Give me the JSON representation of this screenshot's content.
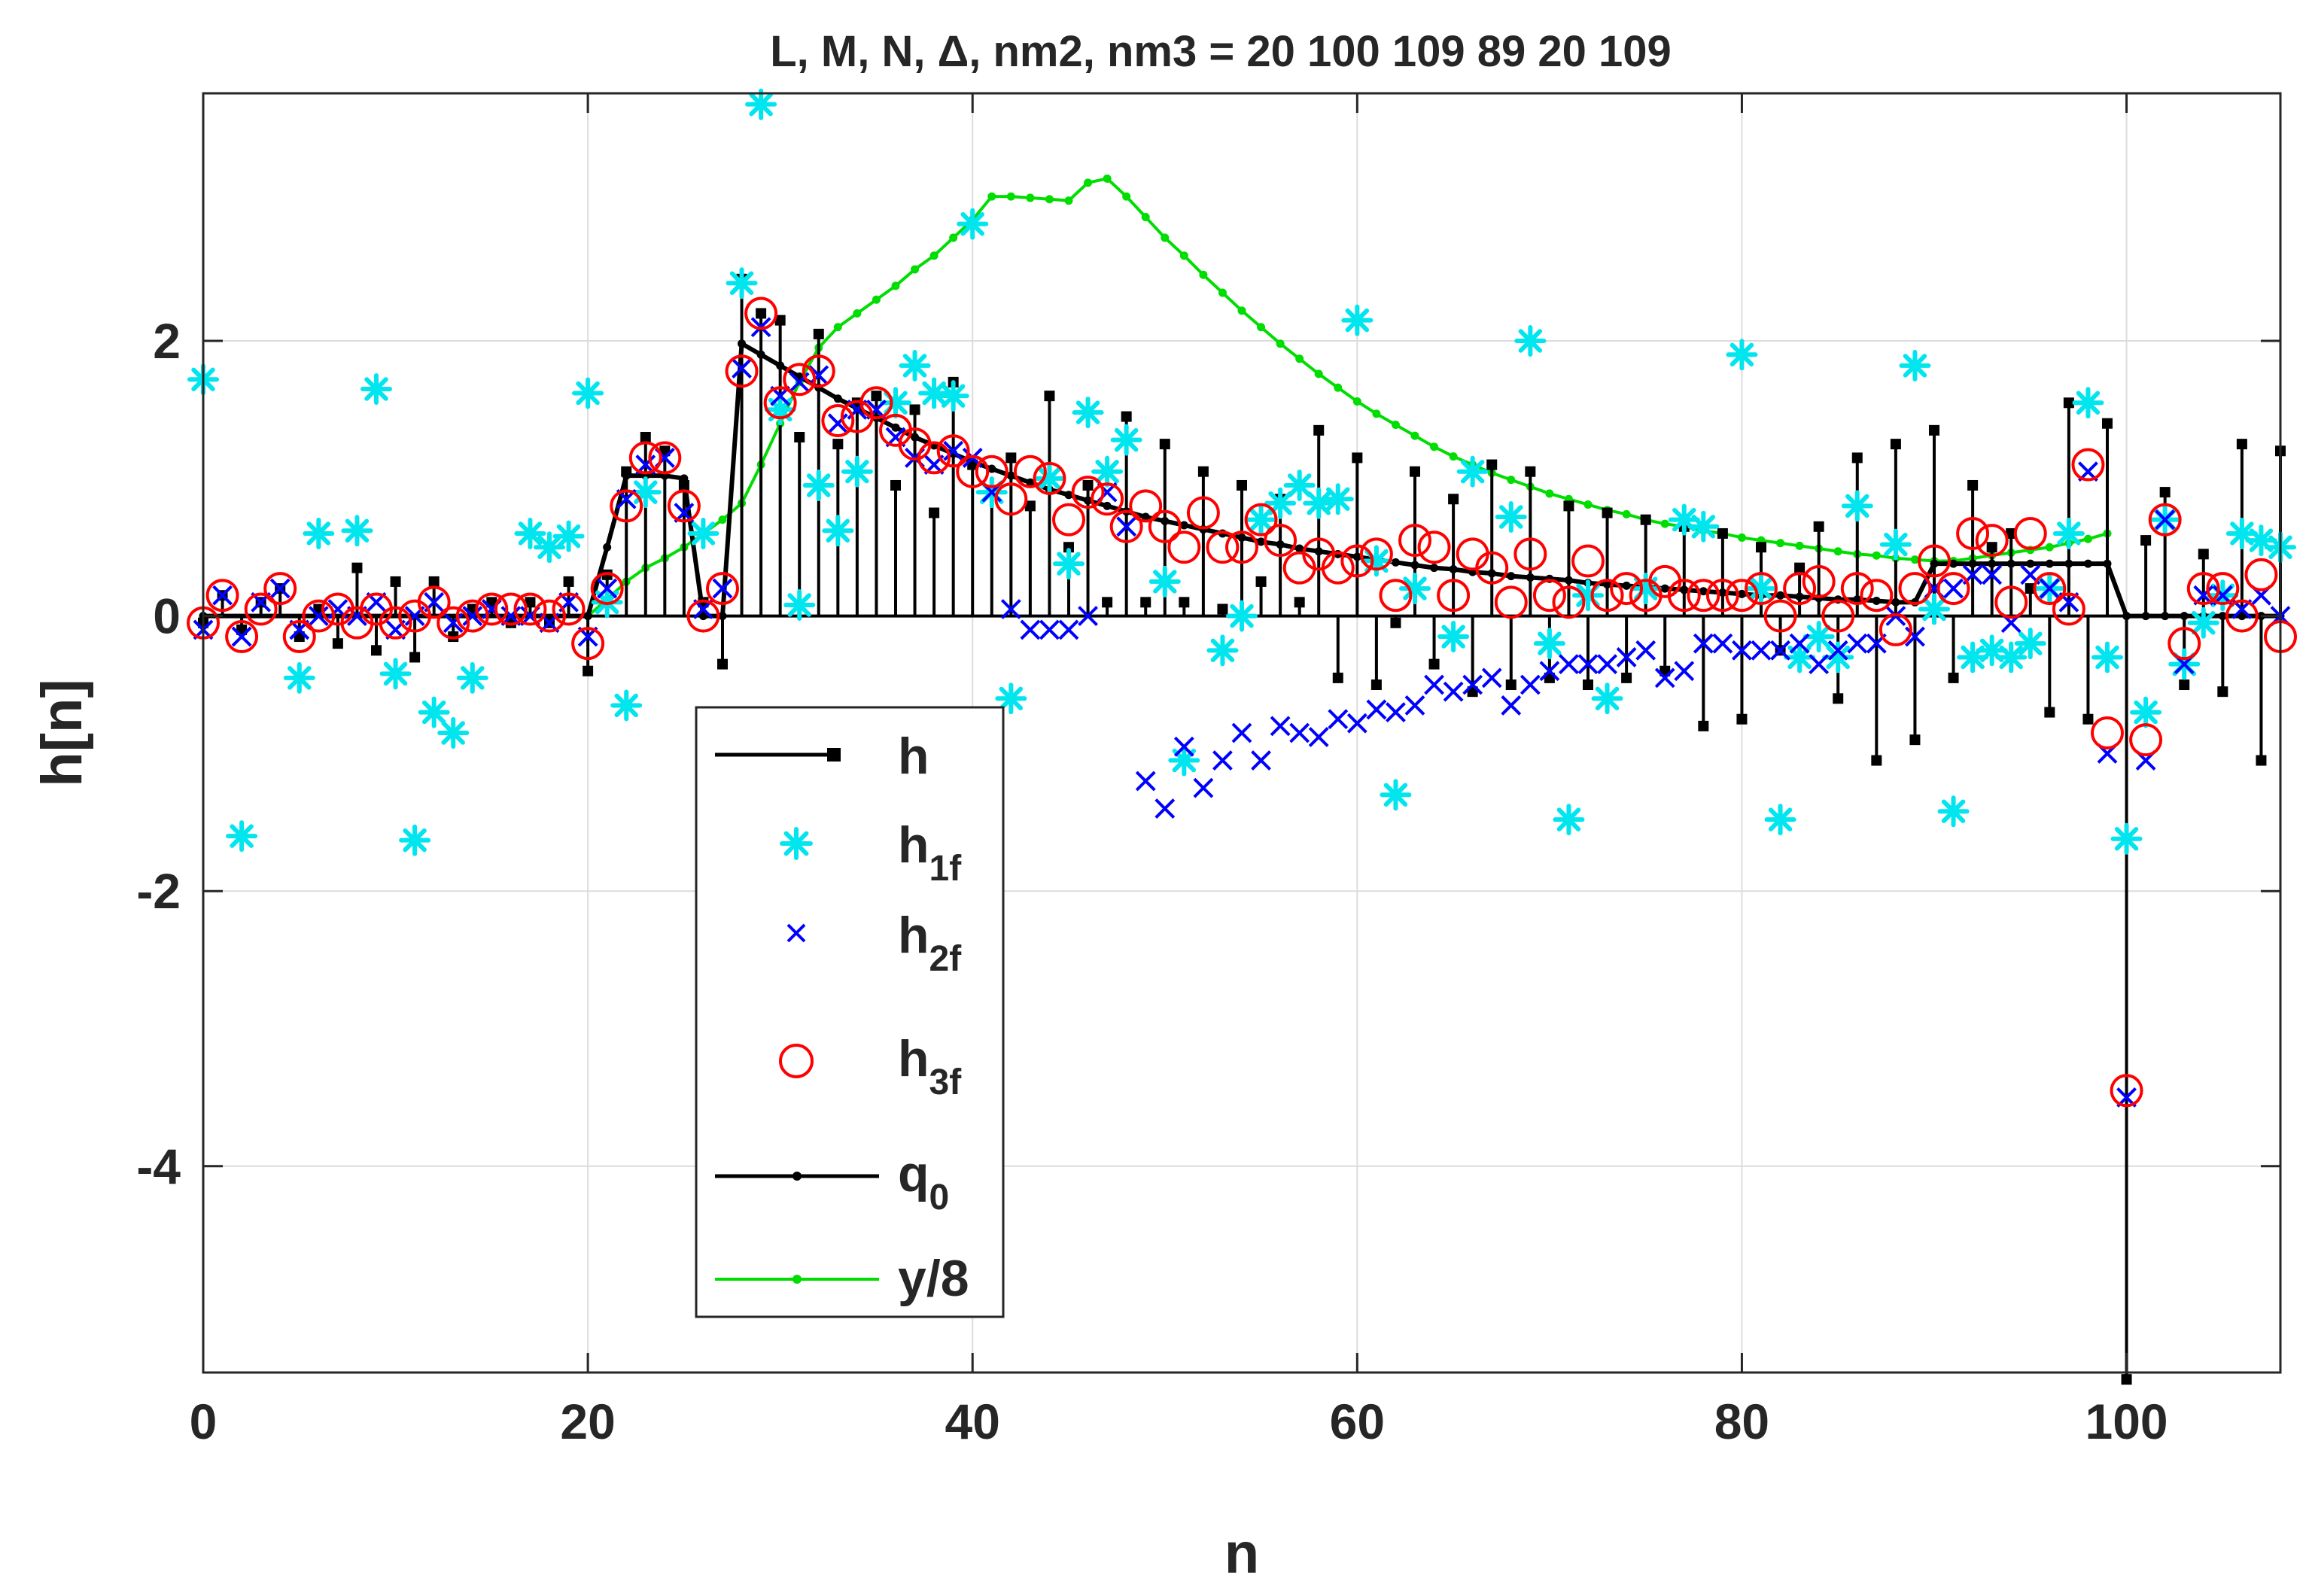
{
  "chart_data": {
    "type": "scatter",
    "title": "L, M, N, Δ, nm2, nm3 = 20  100  109   89   20  109",
    "xlabel": "n",
    "ylabel": "h[n]",
    "xlim": [
      0,
      108
    ],
    "ylim": [
      -5.5,
      3.8
    ],
    "xticks": [
      0,
      20,
      40,
      60,
      80,
      100
    ],
    "yticks": [
      2,
      0,
      -2,
      -4
    ],
    "xtick_labels": [
      "0",
      "20",
      "40",
      "60",
      "80",
      "100"
    ],
    "ytick_labels": [
      "2",
      "0",
      "-2",
      "-4"
    ],
    "grid": true,
    "legend_position": "bottom-center",
    "legend": {
      "h": "h",
      "h1f": "h",
      "h1f_sub": "1f",
      "h2f": "h",
      "h2f_sub": "2f",
      "h3f": "h",
      "h3f_sub": "3f",
      "q0": "q",
      "q0_sub": "0",
      "y8": "y/8"
    },
    "colors": {
      "h": "#000000",
      "h1f": "#00e5ee",
      "h2f": "#0000ff",
      "h3f": "#ff0000",
      "q0": "#000000",
      "y8": "#00dd00"
    },
    "series": [
      {
        "name": "h",
        "style": "stem",
        "x": [
          0,
          1,
          2,
          3,
          4,
          5,
          6,
          7,
          8,
          9,
          10,
          11,
          12,
          13,
          14,
          15,
          16,
          17,
          18,
          19,
          20,
          21,
          22,
          23,
          24,
          25,
          26,
          27,
          28,
          29,
          30,
          31,
          32,
          33,
          34,
          35,
          36,
          37,
          38,
          39,
          40,
          41,
          42,
          43,
          44,
          45,
          46,
          47,
          48,
          49,
          50,
          51,
          52,
          53,
          54,
          55,
          56,
          57,
          58,
          59,
          60,
          61,
          62,
          63,
          64,
          65,
          66,
          67,
          68,
          69,
          70,
          71,
          72,
          73,
          74,
          75,
          76,
          77,
          78,
          79,
          80,
          81,
          82,
          83,
          84,
          85,
          86,
          87,
          88,
          89,
          90,
          91,
          92,
          93,
          94,
          95,
          96,
          97,
          98,
          99,
          100,
          101,
          102,
          103,
          104,
          105,
          106,
          107,
          108
        ],
        "values": [
          -0.05,
          0.15,
          -0.1,
          0.1,
          0.2,
          -0.15,
          0.05,
          -0.2,
          0.35,
          -0.25,
          0.25,
          -0.3,
          0.25,
          -0.15,
          0.05,
          0.1,
          -0.05,
          0.1,
          -0.05,
          0.25,
          -0.4,
          0.3,
          1.05,
          1.3,
          1.2,
          0.95,
          0.1,
          -0.35,
          2.45,
          2.2,
          2.15,
          1.3,
          2.05,
          1.25,
          1.55,
          1.6,
          0.95,
          1.5,
          0.75,
          1.7,
          1.1,
          0.9,
          1.15,
          0.8,
          1.6,
          0.5,
          0.95,
          0.1,
          1.45,
          0.1,
          1.25,
          0.1,
          1.05,
          0.05,
          0.95,
          0.25,
          0.85,
          0.1,
          1.35,
          -0.45,
          1.15,
          -0.5,
          -0.05,
          1.05,
          -0.35,
          0.85,
          -0.55,
          1.1,
          -0.5,
          1.05,
          -0.45,
          0.8,
          -0.5,
          0.75,
          -0.45,
          0.7,
          -0.4,
          0.65,
          -0.8,
          0.6,
          -0.75,
          0.5,
          -0.25,
          0.35,
          0.65,
          -0.6,
          1.15,
          -1.05,
          1.25,
          -0.9,
          1.35,
          -0.45,
          0.95,
          0.5,
          0.6,
          0.2,
          -0.7,
          1.55,
          -0.75,
          1.4,
          -5.55,
          0.55,
          0.9,
          -0.5,
          0.45,
          -0.55,
          1.25,
          -1.05,
          1.2
        ]
      },
      {
        "name": "h1f",
        "style": "asterisk",
        "x": [
          0,
          2,
          5,
          6,
          8,
          9,
          10,
          11,
          12,
          13,
          14,
          17,
          18,
          19,
          20,
          21,
          22,
          23,
          26,
          28,
          29,
          30,
          31,
          32,
          33,
          34,
          36,
          37,
          38,
          39,
          40,
          41,
          42,
          44,
          45,
          46,
          47,
          48,
          50,
          51,
          53,
          54,
          55,
          56,
          57,
          58,
          59,
          60,
          61,
          62,
          63,
          65,
          66,
          68,
          69,
          70,
          71,
          72,
          73,
          75,
          77,
          78,
          80,
          81,
          82,
          83,
          84,
          85,
          86,
          88,
          89,
          90,
          91,
          92,
          93,
          94,
          95,
          96,
          97,
          98,
          99,
          100,
          101,
          102,
          103,
          104,
          105,
          106,
          107,
          108
        ],
        "values": [
          1.72,
          -1.6,
          -0.45,
          0.6,
          0.62,
          1.65,
          -0.42,
          -1.63,
          -0.7,
          -0.85,
          -0.45,
          0.6,
          0.5,
          0.58,
          1.62,
          0.1,
          -0.65,
          0.9,
          0.6,
          2.42,
          3.72,
          1.5,
          0.08,
          0.95,
          0.62,
          1.05,
          1.55,
          1.82,
          1.62,
          1.6,
          2.85,
          0.9,
          -0.6,
          1.0,
          0.38,
          1.48,
          1.05,
          1.28,
          0.25,
          -1.05,
          -0.25,
          0.0,
          0.7,
          0.82,
          0.95,
          0.82,
          0.85,
          2.15,
          0.4,
          -1.3,
          0.2,
          -0.15,
          1.05,
          0.72,
          2.0,
          -0.2,
          -1.48,
          0.15,
          -0.6,
          0.2,
          0.7,
          0.65,
          1.9,
          0.2,
          -1.48,
          -0.3,
          -0.15,
          -0.3,
          0.8,
          0.52,
          1.82,
          0.05,
          -1.42,
          -0.3,
          -0.25,
          -0.3,
          -0.2,
          0.2,
          0.6,
          1.55,
          -0.3,
          -1.62,
          -0.7,
          0.7,
          -0.35,
          -0.05,
          0.15,
          0.6,
          0.55,
          0.5
        ]
      },
      {
        "name": "h2f",
        "style": "x",
        "x": [
          0,
          1,
          2,
          3,
          4,
          5,
          6,
          7,
          8,
          9,
          10,
          11,
          12,
          13,
          14,
          15,
          16,
          17,
          18,
          19,
          20,
          21,
          22,
          23,
          24,
          25,
          26,
          27,
          28,
          29,
          30,
          31,
          32,
          33,
          34,
          35,
          36,
          37,
          38,
          39,
          40,
          41,
          42,
          43,
          44,
          45,
          46,
          47,
          48,
          49,
          50,
          51,
          52,
          53,
          54,
          55,
          56,
          57,
          58,
          59,
          60,
          61,
          62,
          63,
          64,
          65,
          66,
          67,
          68,
          69,
          70,
          71,
          72,
          73,
          74,
          75,
          76,
          77,
          78,
          79,
          80,
          81,
          82,
          83,
          84,
          85,
          86,
          87,
          88,
          89,
          90,
          91,
          92,
          93,
          94,
          95,
          96,
          97,
          98,
          99,
          100,
          101,
          102,
          103,
          104,
          105,
          106,
          107,
          108
        ],
        "values": [
          -0.1,
          0.15,
          -0.15,
          0.1,
          0.2,
          -0.1,
          0.0,
          0.05,
          0.0,
          0.1,
          -0.1,
          0.0,
          0.1,
          -0.05,
          0.0,
          0.05,
          0.0,
          0.0,
          -0.05,
          0.1,
          -0.15,
          0.2,
          0.85,
          1.1,
          1.15,
          0.75,
          0.05,
          0.2,
          1.8,
          2.1,
          1.6,
          1.7,
          1.75,
          1.4,
          1.5,
          1.5,
          1.3,
          1.15,
          1.1,
          1.2,
          1.15,
          0.9,
          0.05,
          -0.1,
          -0.1,
          -0.1,
          0.0,
          0.9,
          0.65,
          -1.2,
          -1.4,
          -0.95,
          -1.25,
          -1.05,
          -0.85,
          -1.05,
          -0.8,
          -0.85,
          -0.88,
          -0.75,
          -0.78,
          -0.68,
          -0.7,
          -0.65,
          -0.5,
          -0.55,
          -0.5,
          -0.45,
          -0.65,
          -0.5,
          -0.4,
          -0.35,
          -0.35,
          -0.35,
          -0.3,
          -0.25,
          -0.45,
          -0.4,
          -0.2,
          -0.2,
          -0.25,
          -0.25,
          -0.25,
          -0.2,
          -0.35,
          -0.25,
          -0.2,
          -0.2,
          0.0,
          -0.15,
          0.2,
          0.2,
          0.3,
          0.3,
          -0.05,
          0.3,
          0.2,
          0.1,
          1.05,
          -1.0,
          -3.5,
          -1.05,
          0.7,
          -0.35,
          0.15,
          0.15,
          0.05,
          0.15,
          0.0
        ]
      },
      {
        "name": "h3f",
        "style": "circle",
        "x": [
          0,
          1,
          2,
          3,
          4,
          5,
          6,
          7,
          8,
          9,
          10,
          11,
          12,
          13,
          14,
          15,
          16,
          17,
          18,
          19,
          20,
          21,
          22,
          23,
          24,
          25,
          26,
          27,
          28,
          29,
          30,
          31,
          32,
          33,
          34,
          35,
          36,
          37,
          38,
          39,
          40,
          41,
          42,
          43,
          44,
          45,
          46,
          47,
          48,
          49,
          50,
          51,
          52,
          53,
          54,
          55,
          56,
          57,
          58,
          59,
          60,
          61,
          62,
          63,
          64,
          65,
          66,
          67,
          68,
          69,
          70,
          71,
          72,
          73,
          74,
          75,
          76,
          77,
          78,
          79,
          80,
          81,
          82,
          83,
          84,
          85,
          86,
          87,
          88,
          89,
          90,
          91,
          92,
          93,
          94,
          95,
          96,
          97,
          98,
          99,
          100,
          101,
          102,
          103,
          104,
          105,
          106,
          107,
          108
        ],
        "values": [
          -0.05,
          0.15,
          -0.15,
          0.05,
          0.2,
          -0.15,
          0.0,
          0.05,
          -0.05,
          0.05,
          -0.05,
          0.0,
          0.1,
          -0.05,
          0.0,
          0.05,
          0.05,
          0.05,
          0.0,
          0.05,
          -0.2,
          0.2,
          0.8,
          1.15,
          1.15,
          0.8,
          0.0,
          0.2,
          1.78,
          2.2,
          1.55,
          1.72,
          1.78,
          1.42,
          1.45,
          1.55,
          1.35,
          1.25,
          1.15,
          1.2,
          1.05,
          1.05,
          0.85,
          1.05,
          1.0,
          0.7,
          0.9,
          0.85,
          0.65,
          0.8,
          0.65,
          0.5,
          0.75,
          0.5,
          0.5,
          0.7,
          0.55,
          0.35,
          0.45,
          0.35,
          0.4,
          0.45,
          0.15,
          0.55,
          0.5,
          0.15,
          0.45,
          0.35,
          0.1,
          0.45,
          0.15,
          0.1,
          0.4,
          0.15,
          0.2,
          0.15,
          0.25,
          0.15,
          0.15,
          0.15,
          0.15,
          0.2,
          0.0,
          0.2,
          0.25,
          0.0,
          0.2,
          0.15,
          -0.1,
          0.2,
          0.4,
          0.2,
          0.6,
          0.55,
          0.1,
          0.6,
          0.2,
          0.05,
          1.1,
          -0.85,
          -3.45,
          -0.9,
          0.7,
          -0.2,
          0.2,
          0.2,
          0.0,
          0.3,
          -0.15
        ]
      },
      {
        "name": "q0",
        "style": "line-dot",
        "x": [
          0,
          20,
          21,
          22,
          23,
          24,
          25,
          26,
          27,
          28,
          29,
          30,
          31,
          32,
          33,
          34,
          35,
          36,
          37,
          38,
          39,
          40,
          41,
          42,
          43,
          44,
          45,
          46,
          47,
          48,
          49,
          50,
          51,
          52,
          53,
          54,
          55,
          56,
          57,
          58,
          59,
          60,
          61,
          62,
          63,
          64,
          65,
          66,
          67,
          68,
          69,
          70,
          71,
          72,
          73,
          74,
          75,
          76,
          77,
          78,
          79,
          80,
          81,
          82,
          83,
          84,
          85,
          86,
          87,
          88,
          89,
          90,
          91,
          92,
          93,
          94,
          95,
          96,
          97,
          98,
          99,
          100,
          101,
          102,
          103,
          104,
          105,
          106,
          107,
          108
        ],
        "values": [
          0,
          0,
          0.5,
          1.02,
          1.02,
          1.02,
          1.0,
          0.0,
          0.0,
          1.98,
          1.9,
          1.82,
          1.74,
          1.66,
          1.58,
          1.51,
          1.44,
          1.37,
          1.3,
          1.24,
          1.18,
          1.12,
          1.07,
          1.02,
          0.97,
          0.92,
          0.88,
          0.84,
          0.8,
          0.76,
          0.72,
          0.69,
          0.66,
          0.63,
          0.6,
          0.57,
          0.54,
          0.52,
          0.49,
          0.47,
          0.45,
          0.43,
          0.41,
          0.39,
          0.37,
          0.35,
          0.34,
          0.32,
          0.31,
          0.29,
          0.28,
          0.27,
          0.26,
          0.24,
          0.23,
          0.22,
          0.21,
          0.2,
          0.19,
          0.18,
          0.17,
          0.16,
          0.15,
          0.15,
          0.14,
          0.13,
          0.12,
          0.12,
          0.11,
          0.1,
          0.1,
          0.38,
          0.38,
          0.38,
          0.38,
          0.38,
          0.38,
          0.38,
          0.38,
          0.38,
          0.38,
          0.0,
          0.0,
          0.0,
          0.0,
          0.0,
          0.0,
          0.0,
          0.0,
          0.0
        ]
      },
      {
        "name": "y/8",
        "style": "line-dot",
        "x": [
          0,
          20,
          21,
          22,
          23,
          24,
          25,
          26,
          27,
          28,
          29,
          30,
          31,
          32,
          33,
          34,
          35,
          36,
          37,
          38,
          39,
          40,
          41,
          42,
          43,
          44,
          45,
          46,
          47,
          48,
          49,
          50,
          51,
          52,
          53,
          54,
          55,
          56,
          57,
          58,
          59,
          60,
          61,
          62,
          63,
          64,
          65,
          66,
          67,
          68,
          69,
          70,
          71,
          72,
          73,
          74,
          75,
          76,
          77,
          78,
          79,
          80,
          81,
          82,
          83,
          84,
          85,
          86,
          87,
          88,
          89,
          90,
          91,
          92,
          93,
          94,
          95,
          96,
          97,
          98,
          99
        ],
        "values": [
          0,
          0,
          0.12,
          0.25,
          0.35,
          0.42,
          0.5,
          0.6,
          0.7,
          0.82,
          1.1,
          1.4,
          1.7,
          1.95,
          2.1,
          2.2,
          2.3,
          2.4,
          2.52,
          2.62,
          2.75,
          2.88,
          3.05,
          3.05,
          3.04,
          3.03,
          3.02,
          3.15,
          3.18,
          3.05,
          2.9,
          2.75,
          2.62,
          2.48,
          2.35,
          2.22,
          2.1,
          1.98,
          1.87,
          1.76,
          1.66,
          1.56,
          1.47,
          1.39,
          1.31,
          1.23,
          1.16,
          1.1,
          1.04,
          0.99,
          0.94,
          0.89,
          0.85,
          0.81,
          0.77,
          0.74,
          0.7,
          0.67,
          0.65,
          0.62,
          0.6,
          0.57,
          0.55,
          0.53,
          0.51,
          0.49,
          0.47,
          0.45,
          0.44,
          0.42,
          0.41,
          0.4,
          0.4,
          0.42,
          0.44,
          0.46,
          0.48,
          0.5,
          0.53,
          0.56,
          0.6
        ]
      }
    ]
  }
}
